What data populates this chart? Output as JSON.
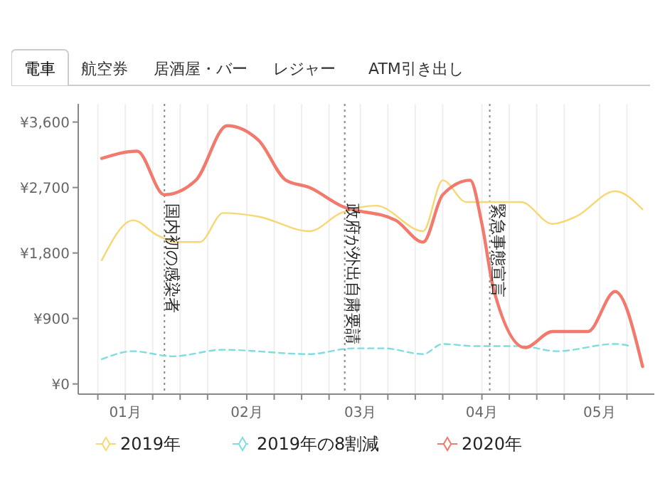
{
  "chart_data": {
    "type": "line",
    "annotations": [
      "電車",
      "航空券",
      "居酒屋・バー",
      "レジャー",
      "ATM引き出し"
    ],
    "xlim": [
      "2019-12-20",
      "2020-05-15"
    ],
    "xticks": [
      {
        "value": "2019-12-25",
        "label": null
      },
      {
        "value": "2020-01-01",
        "label": "01月"
      },
      {
        "value": "2020-01-08",
        "label": null
      },
      {
        "value": "2020-01-15",
        "label": null
      },
      {
        "value": "2020-01-22",
        "label": null
      },
      {
        "value": "2020-02-01",
        "label": "02月"
      },
      {
        "value": "2020-02-08",
        "label": null
      },
      {
        "value": "2020-02-15",
        "label": null
      },
      {
        "value": "2020-02-22",
        "label": null
      },
      {
        "value": "2020-03-01",
        "label": "03月"
      },
      {
        "value": "2020-03-08",
        "label": null
      },
      {
        "value": "2020-03-15",
        "label": null
      },
      {
        "value": "2020-03-22",
        "label": null
      },
      {
        "value": "2020-04-01",
        "label": "04月"
      },
      {
        "value": "2020-04-08",
        "label": null
      },
      {
        "value": "2020-04-15",
        "label": null
      },
      {
        "value": "2020-04-22",
        "label": null
      },
      {
        "value": "2020-05-01",
        "label": "05月"
      },
      {
        "value": "2020-05-08",
        "label": null
      }
    ],
    "ylim": [
      -140,
      3850
    ],
    "yticks": [
      {
        "value": 0,
        "label": "¥0"
      },
      {
        "value": 900,
        "label": "¥900"
      },
      {
        "value": 1800,
        "label": "¥1,800"
      },
      {
        "value": 2700,
        "label": "¥2,700"
      },
      {
        "value": 3600,
        "label": "¥3,600"
      }
    ],
    "grid": "x",
    "legend": "bottom",
    "marker": "none",
    "ref_lines": [
      {
        "axis": "x",
        "value": "2020-01-11",
        "label": "国内初の感染者",
        "line_style": "dotted",
        "color": "#888888"
      },
      {
        "axis": "x",
        "value": "2020-02-26",
        "label": "政府が外出自粛要請",
        "line_style": "dotted",
        "color": "#888888"
      },
      {
        "axis": "x",
        "value": "2020-04-03",
        "label": "緊急事態宣言",
        "line_style": "dotted",
        "color": "#888888"
      }
    ],
    "series": [
      {
        "name": "2019年",
        "color": "#f7d774",
        "line_style": "solid",
        "x": [
          "2019-12-26",
          "2020-01-03",
          "2020-01-09",
          "2020-01-14",
          "2020-01-20",
          "2020-01-26",
          "2020-02-04",
          "2020-02-17",
          "2020-02-25",
          "2020-03-05",
          "2020-03-17",
          "2020-03-22",
          "2020-03-28",
          "2020-04-11",
          "2020-04-19",
          "2020-04-25",
          "2020-05-05",
          "2020-05-12"
        ],
        "values": [
          1700,
          2250,
          2050,
          1950,
          1950,
          2350,
          2300,
          2100,
          2350,
          2450,
          2100,
          2800,
          2500,
          2500,
          2200,
          2300,
          2650,
          2400
        ]
      },
      {
        "name": "2019年の8割減",
        "color": "#7fdde0",
        "line_style": "dashed",
        "x": [
          "2019-12-26",
          "2020-01-03",
          "2020-01-13",
          "2020-01-26",
          "2020-02-17",
          "2020-02-28",
          "2020-03-07",
          "2020-03-17",
          "2020-03-22",
          "2020-03-30",
          "2020-04-11",
          "2020-04-20",
          "2020-05-05",
          "2020-05-09"
        ],
        "values": [
          340,
          450,
          380,
          470,
          410,
          490,
          490,
          410,
          550,
          520,
          520,
          450,
          550,
          520
        ]
      },
      {
        "name": "2020年",
        "color": "#f27a6c",
        "line_style": "solid",
        "x": [
          "2019-12-26",
          "2020-01-04",
          "2020-01-11",
          "2020-01-19",
          "2020-01-27",
          "2020-02-04",
          "2020-02-11",
          "2020-02-17",
          "2020-02-25",
          "2020-03-10",
          "2020-03-17",
          "2020-03-22",
          "2020-03-29",
          "2020-04-01",
          "2020-04-04",
          "2020-04-12",
          "2020-04-19",
          "2020-04-28",
          "2020-05-05",
          "2020-05-12"
        ],
        "values": [
          3100,
          3200,
          2600,
          2800,
          3550,
          3350,
          2800,
          2700,
          2450,
          2250,
          1950,
          2600,
          2800,
          2200,
          1300,
          500,
          720,
          720,
          1270,
          240
        ]
      }
    ]
  }
}
